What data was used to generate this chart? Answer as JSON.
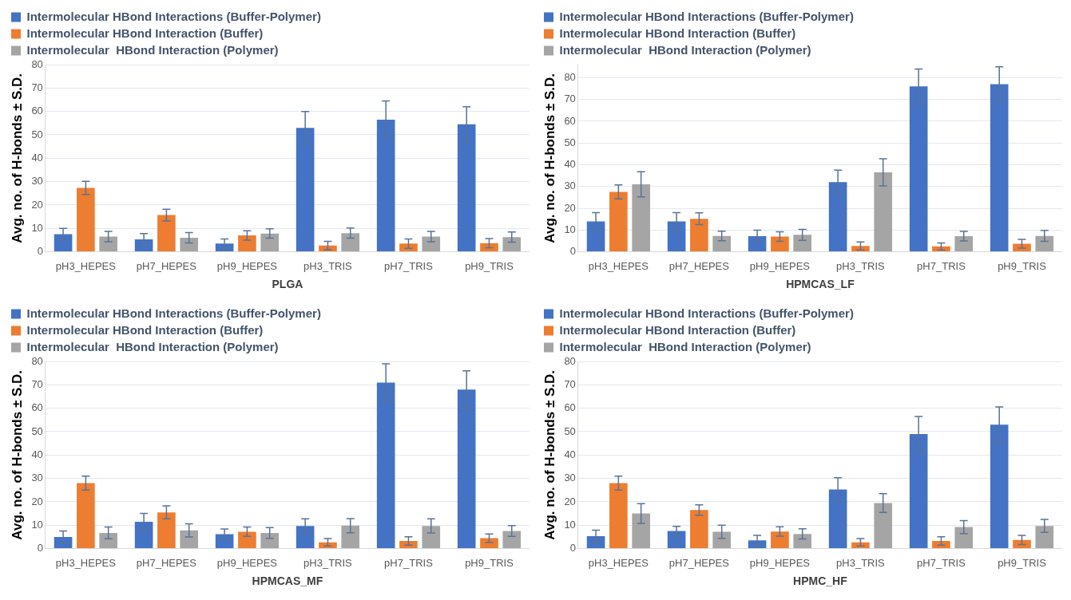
{
  "chart_data": [
    {
      "type": "bar",
      "xlabel": "PLGA",
      "ylabel": "Avg. no. of H-bonds ± S.D.",
      "categories": [
        "pH3_HEPES",
        "pH7_HEPES",
        "pH9_HEPES",
        "pH3_TRIS",
        "pH7_TRIS",
        "pH9_TRIS"
      ],
      "ylim": [
        0,
        80
      ],
      "yticks": [
        0,
        10,
        20,
        30,
        40,
        50,
        60,
        70,
        80
      ],
      "grid": "y",
      "legend": "top left",
      "series": [
        {
          "name": "Intermolecular HBond Interactions (Buffer-Polymer)",
          "color": "#4472c4",
          "values": [
            7.5,
            5.3,
            3.5,
            53,
            56.5,
            54.5
          ],
          "errors": [
            2.5,
            2.5,
            2,
            7,
            8,
            7.5
          ]
        },
        {
          "name": "Intermolecular HBond Interaction (Buffer)",
          "color": "#ed7d31",
          "values": [
            27.3,
            15.7,
            7,
            2.7,
            3.5,
            3.7
          ],
          "errors": [
            2.8,
            2.5,
            2,
            1.8,
            2,
            2
          ]
        },
        {
          "name": "Intermolecular  HBond Interaction (Polymer)",
          "color": "#a5a5a5",
          "values": [
            6.5,
            6,
            7.8,
            8,
            6.5,
            6.3
          ],
          "errors": [
            2.2,
            2.2,
            2,
            2.2,
            2.2,
            2.2
          ]
        }
      ]
    },
    {
      "type": "bar",
      "xlabel": "HPMCAS_LF",
      "ylabel": "Avg. no. of H-bonds ± S.D.",
      "categories": [
        "pH3_HEPES",
        "pH7_HEPES",
        "pH9_HEPES",
        "pH3_TRIS",
        "pH7_TRIS",
        "pH9_TRIS"
      ],
      "ylim": [
        0,
        86
      ],
      "yticks": [
        0,
        10,
        20,
        30,
        40,
        50,
        60,
        70,
        80
      ],
      "grid": "y",
      "legend": "top left",
      "series": [
        {
          "name": "Intermolecular HBond Interactions (Buffer-Polymer)",
          "color": "#4472c4",
          "values": [
            14,
            14,
            7.2,
            32,
            76,
            77
          ],
          "errors": [
            4,
            4,
            2.7,
            5.5,
            8,
            8
          ]
        },
        {
          "name": "Intermolecular HBond Interaction (Buffer)",
          "color": "#ed7d31",
          "values": [
            27.5,
            15.2,
            7,
            2.7,
            2.5,
            3.7
          ],
          "errors": [
            3.2,
            2.7,
            2.2,
            1.8,
            1.6,
            2
          ]
        },
        {
          "name": "Intermolecular  HBond Interaction (Polymer)",
          "color": "#a5a5a5",
          "values": [
            31,
            7.3,
            7.8,
            36.5,
            7.2,
            7.3
          ],
          "errors": [
            5.8,
            2.2,
            2.5,
            6.2,
            2.2,
            2.5
          ]
        }
      ]
    },
    {
      "type": "bar",
      "xlabel": "HPMCAS_MF",
      "ylabel": "Avg. no. of H-bonds ± S.D.",
      "categories": [
        "pH3_HEPES",
        "pH7_HEPES",
        "pH9_HEPES",
        "pH3_TRIS",
        "pH7_TRIS",
        "pH9_TRIS"
      ],
      "ylim": [
        0,
        80
      ],
      "yticks": [
        0,
        10,
        20,
        30,
        40,
        50,
        60,
        70,
        80
      ],
      "grid": "y",
      "legend": "top left",
      "series": [
        {
          "name": "Intermolecular HBond Interactions (Buffer-Polymer)",
          "color": "#4472c4",
          "values": [
            5,
            11.5,
            6.2,
            9.7,
            71,
            68
          ],
          "errors": [
            2.5,
            3.5,
            2.2,
            3,
            8,
            8
          ]
        },
        {
          "name": "Intermolecular HBond Interaction (Buffer)",
          "color": "#ed7d31",
          "values": [
            28,
            15.5,
            7.2,
            2.7,
            3.3,
            4.5
          ],
          "errors": [
            3,
            2.8,
            2,
            1.6,
            1.8,
            1.8
          ]
        },
        {
          "name": "Intermolecular  HBond Interaction (Polymer)",
          "color": "#a5a5a5",
          "values": [
            6.7,
            7.8,
            6.7,
            9.8,
            9.7,
            7.5
          ],
          "errors": [
            2.5,
            2.8,
            2.3,
            3,
            3,
            2.3
          ]
        }
      ]
    },
    {
      "type": "bar",
      "xlabel": "HPMC_HF",
      "ylabel": "Avg. no. of H-bonds ± S.D.",
      "categories": [
        "pH3_HEPES",
        "pH7_HEPES",
        "pH9_HEPES",
        "pH3_TRIS",
        "pH7_TRIS",
        "pH9_TRIS"
      ],
      "ylim": [
        0,
        80
      ],
      "yticks": [
        0,
        10,
        20,
        30,
        40,
        50,
        60,
        70,
        80
      ],
      "grid": "y",
      "legend": "top left",
      "series": [
        {
          "name": "Intermolecular HBond Interactions (Buffer-Polymer)",
          "color": "#4472c4",
          "values": [
            5.3,
            7.5,
            3.5,
            25.3,
            49,
            53
          ],
          "errors": [
            2.6,
            2,
            2.2,
            5,
            7.5,
            7.6
          ]
        },
        {
          "name": "Intermolecular HBond Interaction (Buffer)",
          "color": "#ed7d31",
          "values": [
            28,
            16.5,
            7.3,
            2.7,
            3.3,
            3.7
          ],
          "errors": [
            3,
            2.2,
            2,
            1.6,
            1.8,
            2
          ]
        },
        {
          "name": "Intermolecular  HBond Interaction (Polymer)",
          "color": "#a5a5a5",
          "values": [
            15,
            7.2,
            6.3,
            19.5,
            9.2,
            9.7
          ],
          "errors": [
            4.2,
            2.8,
            2.2,
            4,
            2.8,
            2.8
          ]
        }
      ]
    }
  ]
}
